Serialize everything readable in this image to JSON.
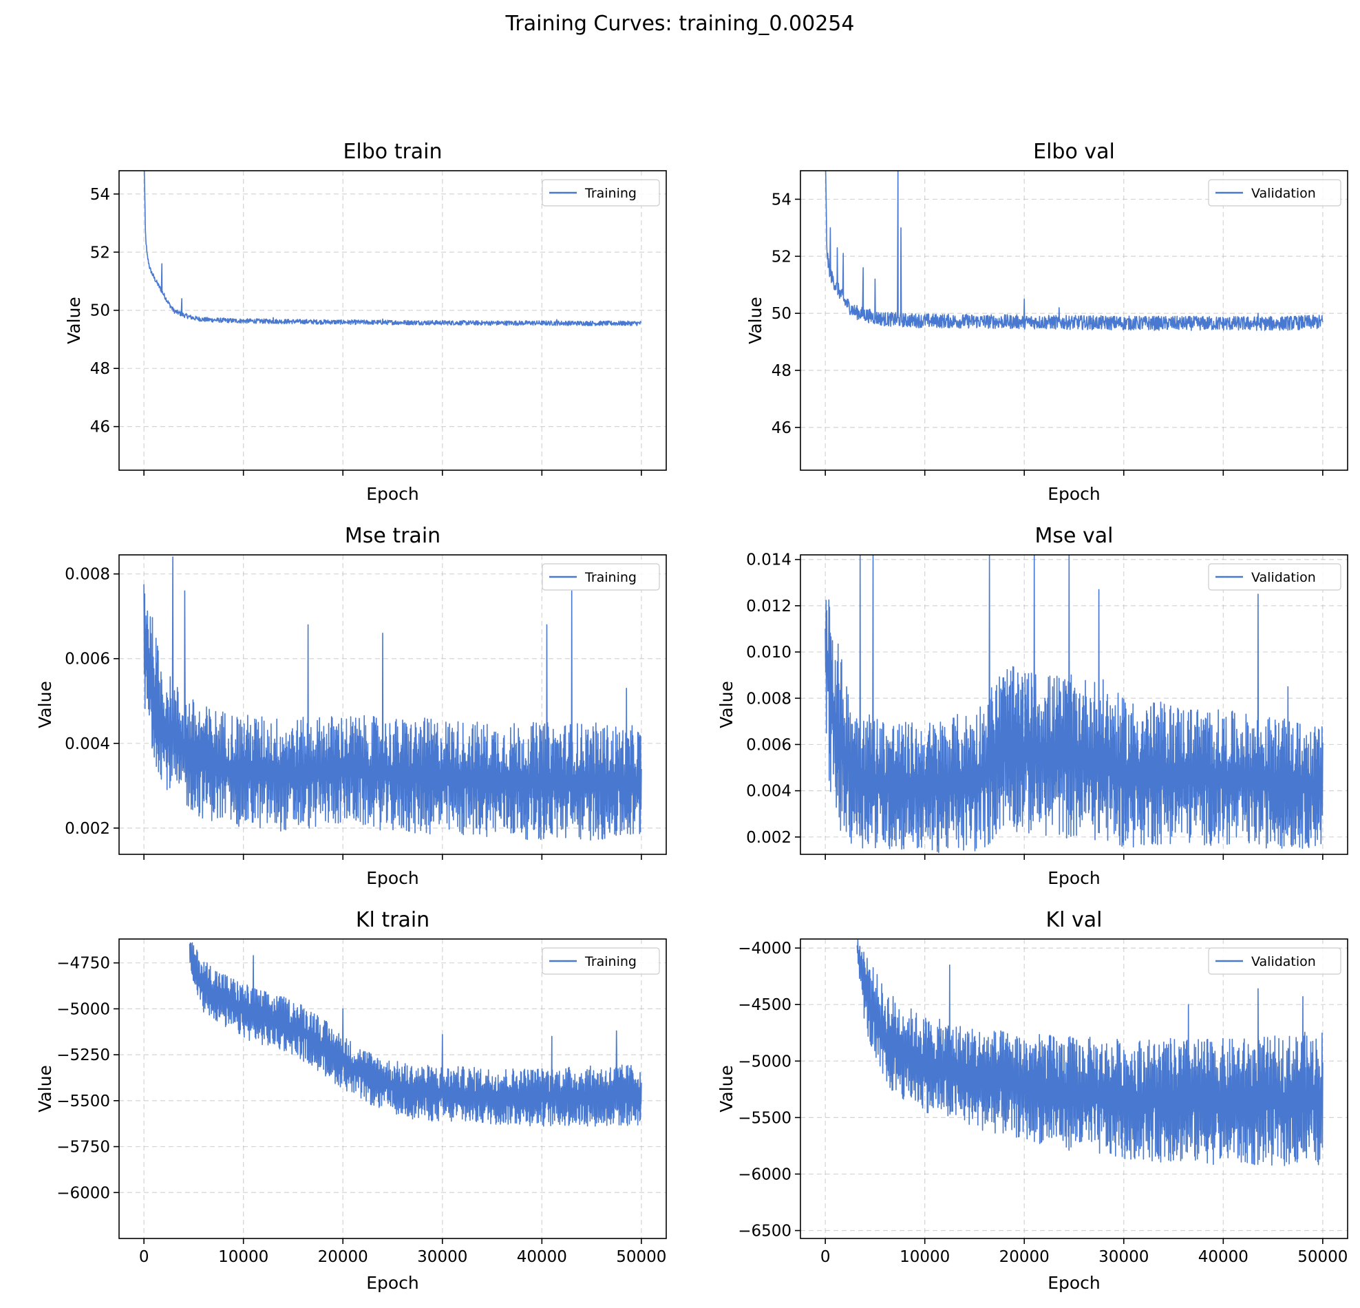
{
  "figure": {
    "suptitle": "Training Curves: training_0.00254",
    "line_color": "#4878cf"
  },
  "chart_data": [
    {
      "type": "line",
      "title": "Elbo train",
      "xlabel": "",
      "ylabel": "Value",
      "xlim": [
        -2500,
        52500
      ],
      "ylim": [
        44.5,
        54.8
      ],
      "xticks": [
        0,
        10000,
        20000,
        30000,
        40000,
        50000
      ],
      "xtick_labels_visible": false,
      "yticks": [
        46,
        48,
        50,
        52,
        54
      ],
      "ytick_labels": [
        "46",
        "48",
        "50",
        "52",
        "54"
      ],
      "grid": true,
      "legend": "upper-right",
      "series": [
        {
          "name": "Training",
          "x": [
            0,
            150,
            300,
            600,
            1000,
            1500,
            2000,
            2500,
            3000,
            4000,
            5000,
            6000,
            8000,
            10000,
            15000,
            20000,
            25000,
            30000,
            35000,
            40000,
            45000,
            50000
          ],
          "y": [
            55.5,
            52.6,
            51.9,
            51.4,
            51.1,
            50.8,
            50.5,
            50.2,
            49.95,
            49.8,
            49.7,
            49.65,
            49.62,
            49.6,
            49.58,
            49.56,
            49.55,
            49.54,
            49.53,
            49.53,
            49.52,
            49.52
          ],
          "noise_band": 0.08,
          "spikes": [
            [
              1800,
              51.6
            ],
            [
              3800,
              50.4
            ],
            [
              13000,
              49.75
            ],
            [
              24000,
              49.7
            ],
            [
              41500,
              49.68
            ]
          ]
        }
      ]
    },
    {
      "type": "line",
      "title": "Elbo val",
      "xlabel": "",
      "ylabel": "Value",
      "xlim": [
        -2500,
        52500
      ],
      "ylim": [
        44.5,
        55.0
      ],
      "xticks": [
        0,
        10000,
        20000,
        30000,
        40000,
        50000
      ],
      "xtick_labels_visible": false,
      "yticks": [
        46,
        48,
        50,
        52,
        54
      ],
      "ytick_labels": [
        "46",
        "48",
        "50",
        "52",
        "54"
      ],
      "grid": true,
      "legend": "upper-right",
      "series": [
        {
          "name": "Validation",
          "x": [
            0,
            150,
            300,
            600,
            1000,
            1500,
            2000,
            2500,
            3000,
            4000,
            5000,
            6000,
            8000,
            10000,
            15000,
            20000,
            25000,
            30000,
            35000,
            40000,
            45000,
            50000
          ],
          "y": [
            55.5,
            52.2,
            51.6,
            51.2,
            50.9,
            50.6,
            50.3,
            50.1,
            49.95,
            49.85,
            49.75,
            49.7,
            49.66,
            49.64,
            49.62,
            49.6,
            49.58,
            49.56,
            49.55,
            49.55,
            49.54,
            49.6
          ],
          "noise_band": 0.25,
          "spikes": [
            [
              500,
              53.0
            ],
            [
              1200,
              52.3
            ],
            [
              1800,
              52.1
            ],
            [
              3800,
              51.6
            ],
            [
              5000,
              51.2
            ],
            [
              7300,
              55.0
            ],
            [
              7600,
              53.0
            ],
            [
              20000,
              50.5
            ],
            [
              23500,
              50.2
            ],
            [
              43500,
              50.0
            ]
          ]
        }
      ]
    },
    {
      "type": "line",
      "title": "Mse train",
      "xlabel": "",
      "ylabel": "Value",
      "xlim": [
        -2500,
        52500
      ],
      "ylim": [
        0.00138,
        0.00845
      ],
      "xticks": [
        0,
        10000,
        20000,
        30000,
        40000,
        50000
      ],
      "xtick_labels_visible": false,
      "yticks": [
        0.002,
        0.004,
        0.006,
        0.008
      ],
      "ytick_labels": [
        "0.002",
        "0.004",
        "0.006",
        "0.008"
      ],
      "grid": true,
      "legend": "upper-right",
      "series": [
        {
          "name": "Training",
          "x": [
            0,
            500,
            1000,
            1500,
            2000,
            3000,
            4000,
            6000,
            8000,
            10000,
            15000,
            20000,
            25000,
            30000,
            35000,
            40000,
            45000,
            50000
          ],
          "low": [
            0.0045,
            0.004,
            0.0036,
            0.0033,
            0.003,
            0.0027,
            0.0025,
            0.0022,
            0.0021,
            0.002,
            0.0019,
            0.0021,
            0.0019,
            0.0018,
            0.0018,
            0.0017,
            0.0017,
            0.0017
          ],
          "high": [
            0.0084,
            0.0075,
            0.0068,
            0.0062,
            0.0058,
            0.0055,
            0.0052,
            0.0049,
            0.0048,
            0.0047,
            0.0046,
            0.0047,
            0.0046,
            0.0046,
            0.0045,
            0.0045,
            0.0045,
            0.0044
          ],
          "spikes": [
            [
              2900,
              0.0084
            ],
            [
              4100,
              0.0076
            ],
            [
              16500,
              0.0068
            ],
            [
              24000,
              0.0066
            ],
            [
              40500,
              0.0068
            ],
            [
              43000,
              0.0076
            ],
            [
              48500,
              0.0053
            ]
          ]
        }
      ]
    },
    {
      "type": "line",
      "title": "Mse val",
      "xlabel": "",
      "ylabel": "Value",
      "xlim": [
        -2500,
        52500
      ],
      "ylim": [
        0.00125,
        0.0142
      ],
      "xticks": [
        0,
        10000,
        20000,
        30000,
        40000,
        50000
      ],
      "xtick_labels_visible": false,
      "yticks": [
        0.002,
        0.004,
        0.006,
        0.008,
        0.01,
        0.012,
        0.014
      ],
      "ytick_labels": [
        "0.002",
        "0.004",
        "0.006",
        "0.008",
        "0.010",
        "0.012",
        "0.014"
      ],
      "grid": true,
      "legend": "upper-right",
      "series": [
        {
          "name": "Validation",
          "x": [
            0,
            500,
            1000,
            2000,
            3000,
            4000,
            6000,
            8000,
            10000,
            12000,
            15000,
            16500,
            18000,
            20000,
            25000,
            28000,
            30000,
            35000,
            40000,
            45000,
            50000
          ],
          "low": [
            0.006,
            0.004,
            0.0025,
            0.0018,
            0.0016,
            0.0015,
            0.0014,
            0.0014,
            0.0013,
            0.0013,
            0.0013,
            0.0016,
            0.0024,
            0.0021,
            0.0019,
            0.0018,
            0.0015,
            0.0017,
            0.0016,
            0.0015,
            0.0015
          ],
          "high": [
            0.0142,
            0.013,
            0.011,
            0.009,
            0.008,
            0.0075,
            0.0072,
            0.007,
            0.007,
            0.0072,
            0.0075,
            0.0085,
            0.0095,
            0.0092,
            0.009,
            0.0088,
            0.008,
            0.0078,
            0.0075,
            0.0072,
            0.0068
          ],
          "spikes": [
            [
              3500,
              0.0142
            ],
            [
              4800,
              0.0142
            ],
            [
              16500,
              0.0142
            ],
            [
              21000,
              0.0142
            ],
            [
              24500,
              0.0142
            ],
            [
              27500,
              0.0127
            ],
            [
              43500,
              0.0125
            ],
            [
              46500,
              0.0085
            ]
          ]
        }
      ]
    },
    {
      "type": "line",
      "title": "Kl train",
      "xlabel": "Epoch",
      "ylabel": "Value",
      "xlim": [
        -2500,
        52500
      ],
      "ylim": [
        -6250,
        -4620
      ],
      "xticks": [
        0,
        10000,
        20000,
        30000,
        40000,
        50000
      ],
      "xtick_labels_visible": true,
      "xtick_labels": [
        "0",
        "10000",
        "20000",
        "30000",
        "40000",
        "50000"
      ],
      "yticks": [
        -6000,
        -5750,
        -5500,
        -5250,
        -5000,
        -4750
      ],
      "ytick_labels": [
        "−6000",
        "−5750",
        "−5500",
        "−5250",
        "−5000",
        "−4750"
      ],
      "grid": true,
      "legend": "upper-right",
      "series": [
        {
          "name": "Training",
          "x": [
            4600,
            5000,
            6000,
            8000,
            10000,
            12000,
            15000,
            17000,
            19000,
            21000,
            23000,
            25000,
            27000,
            30000,
            35000,
            40000,
            45000,
            50000
          ],
          "low": [
            -4750,
            -4900,
            -5020,
            -5100,
            -5160,
            -5200,
            -5250,
            -5320,
            -5400,
            -5470,
            -5530,
            -5570,
            -5600,
            -5620,
            -5630,
            -5640,
            -5640,
            -5640
          ],
          "high": [
            -4620,
            -4650,
            -4730,
            -4800,
            -4860,
            -4900,
            -4950,
            -5000,
            -5100,
            -5180,
            -5240,
            -5280,
            -5300,
            -5310,
            -5320,
            -5320,
            -5310,
            -5300
          ],
          "spikes": [
            [
              11000,
              -4710
            ],
            [
              20000,
              -5000
            ],
            [
              30000,
              -5140
            ],
            [
              41000,
              -5150
            ],
            [
              47500,
              -5120
            ]
          ]
        }
      ]
    },
    {
      "type": "line",
      "title": "Kl val",
      "xlabel": "Epoch",
      "ylabel": "Value",
      "xlim": [
        -2500,
        52500
      ],
      "ylim": [
        -6570,
        -3920
      ],
      "xticks": [
        0,
        10000,
        20000,
        30000,
        40000,
        50000
      ],
      "xtick_labels_visible": true,
      "xtick_labels": [
        "0",
        "10000",
        "20000",
        "30000",
        "40000",
        "50000"
      ],
      "yticks": [
        -6500,
        -6000,
        -5500,
        -5000,
        -4500,
        -4000
      ],
      "ytick_labels": [
        "−6500",
        "−6000",
        "−5500",
        "−5000",
        "−4500",
        "−4000"
      ],
      "grid": true,
      "legend": "upper-right",
      "series": [
        {
          "name": "Validation",
          "x": [
            3200,
            4000,
            5000,
            6000,
            8000,
            10000,
            15000,
            20000,
            25000,
            30000,
            35000,
            40000,
            45000,
            50000
          ],
          "low": [
            -4100,
            -4700,
            -5050,
            -5250,
            -5350,
            -5450,
            -5600,
            -5700,
            -5800,
            -5880,
            -5900,
            -5920,
            -5930,
            -5930
          ],
          "high": [
            -3920,
            -4000,
            -4200,
            -4350,
            -4500,
            -4600,
            -4700,
            -4750,
            -4780,
            -4800,
            -4800,
            -4800,
            -4780,
            -4720
          ],
          "spikes": [
            [
              12500,
              -4150
            ],
            [
              36500,
              -4500
            ],
            [
              43500,
              -4360
            ],
            [
              48000,
              -4430
            ]
          ]
        }
      ]
    }
  ]
}
